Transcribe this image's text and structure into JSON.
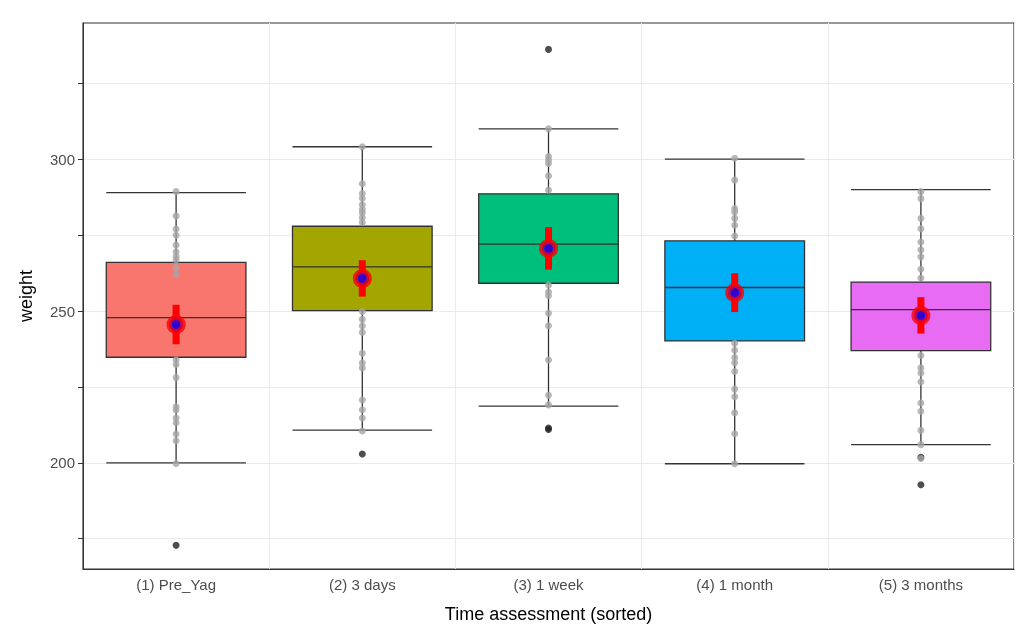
{
  "chart_data": {
    "type": "box",
    "xlabel": "Time assessment (sorted)",
    "ylabel": "weight",
    "categories": [
      "(1) Pre_Yag",
      "(2) 3 days",
      "(3) 1 week",
      "(4) 1 month",
      "(5) 3 months"
    ],
    "colors": [
      "#f8766d",
      "#a3a500",
      "#00bf7d",
      "#00b0f6",
      "#e76bf3"
    ],
    "boxes": [
      {
        "low": 200,
        "q1": 234.8,
        "median": 247.9,
        "q3": 266.1,
        "high": 289.1,
        "outliers": [
          172.8
        ]
      },
      {
        "low": 210.8,
        "q1": 250.2,
        "median": 264.6,
        "q3": 278,
        "high": 304.2,
        "outliers": [
          202.9
        ]
      },
      {
        "low": 218.7,
        "q1": 259.2,
        "median": 272.1,
        "q3": 288.7,
        "high": 310.1,
        "outliers": [
          211.5,
          211,
          336.3
        ]
      },
      {
        "low": 199.7,
        "q1": 240.2,
        "median": 257.8,
        "q3": 273.2,
        "high": 300.1
      },
      {
        "low": 206,
        "q1": 237,
        "median": 250.5,
        "q3": 259.6,
        "high": 290.1,
        "outliers": [
          201.8,
          192.8
        ]
      }
    ],
    "series": [
      {
        "type": "scatter",
        "color": "#a6a6a6",
        "x": [
          "(1) Pre_Yag",
          "(1) Pre_Yag",
          "(1) Pre_Yag",
          "(1) Pre_Yag",
          "(1) Pre_Yag",
          "(1) Pre_Yag",
          "(1) Pre_Yag",
          "(1) Pre_Yag",
          "(1) Pre_Yag",
          "(1) Pre_Yag",
          "(1) Pre_Yag",
          "(1) Pre_Yag",
          "(1) Pre_Yag",
          "(1) Pre_Yag",
          "(1) Pre_Yag",
          "(1) Pre_Yag",
          "(1) Pre_Yag",
          "(1) Pre_Yag",
          "(1) Pre_Yag",
          "(1) Pre_Yag",
          "(2) 3 days",
          "(2) 3 days",
          "(2) 3 days",
          "(2) 3 days",
          "(2) 3 days",
          "(2) 3 days",
          "(2) 3 days",
          "(2) 3 days",
          "(2) 3 days",
          "(2) 3 days",
          "(2) 3 days",
          "(2) 3 days",
          "(2) 3 days",
          "(2) 3 days",
          "(2) 3 days",
          "(2) 3 days",
          "(2) 3 days",
          "(2) 3 days",
          "(2) 3 days",
          "(2) 3 days",
          "(3) 1 week",
          "(3) 1 week",
          "(3) 1 week",
          "(3) 1 week",
          "(3) 1 week",
          "(3) 1 week",
          "(3) 1 week",
          "(3) 1 week",
          "(3) 1 week",
          "(3) 1 week",
          "(3) 1 week",
          "(3) 1 week",
          "(3) 1 week",
          "(3) 1 week",
          "(4) 1 month",
          "(4) 1 month",
          "(4) 1 month",
          "(4) 1 month",
          "(4) 1 month",
          "(4) 1 month",
          "(4) 1 month",
          "(4) 1 month",
          "(4) 1 month",
          "(4) 1 month",
          "(4) 1 month",
          "(4) 1 month",
          "(4) 1 month",
          "(4) 1 month",
          "(4) 1 month",
          "(4) 1 month",
          "(4) 1 month",
          "(5) 3 months",
          "(5) 3 months",
          "(5) 3 months",
          "(5) 3 months",
          "(5) 3 months",
          "(5) 3 months",
          "(5) 3 months",
          "(5) 3 months",
          "(5) 3 months",
          "(5) 3 months",
          "(5) 3 months",
          "(5) 3 months",
          "(5) 3 months",
          "(5) 3 months",
          "(5) 3 months",
          "(5) 3 months",
          "(5) 3 months",
          "(5) 3 months"
        ],
        "values": [
          289.4,
          281.4,
          277.1,
          275,
          271.8,
          269.6,
          268,
          266.9,
          264.4,
          262.2,
          234,
          232.4,
          228.1,
          218.5,
          217.4,
          214.8,
          213.2,
          209.5,
          207.3,
          199.8,
          304.2,
          292,
          288.8,
          287.2,
          285.1,
          283.5,
          282.4,
          280.8,
          279.2,
          249.9,
          247.3,
          245.1,
          243,
          236.1,
          232.9,
          231.3,
          220.7,
          217.5,
          214.8,
          210.5,
          310.1,
          301,
          299.8,
          298.7,
          294.6,
          289.9,
          258.6,
          256.3,
          255.1,
          249.3,
          245.2,
          233.9,
          222.3,
          219.1,
          300.4,
          293.2,
          283.8,
          282.7,
          280.6,
          278.3,
          274.8,
          239.4,
          237.1,
          234.7,
          233,
          230.1,
          224.3,
          221.8,
          216.5,
          209.6,
          199.7,
          289.4,
          287.1,
          280.6,
          277.2,
          272.8,
          270.2,
          267.9,
          263.8,
          260.9,
          235.4,
          231.3,
          229.6,
          226.7,
          219.7,
          217,
          210.7,
          206,
          201.4
        ]
      },
      {
        "type": "scatter",
        "color": "#ff0000",
        "x": [
          "(1) Pre_Yag",
          "(2) 3 days",
          "(3) 1 week",
          "(4) 1 month",
          "(5) 3 months"
        ],
        "values": [
          245.6,
          260.8,
          270.7,
          256.1,
          248.6
        ],
        "errors": [
          6.5,
          6,
          7,
          6.4,
          6
        ]
      }
    ],
    "ylim": [
      165,
      345
    ],
    "yticks": [
      {
        "value": 175,
        "label": null
      },
      200,
      {
        "value": 225,
        "label": null
      },
      250,
      {
        "value": 275,
        "label": null
      },
      300,
      {
        "value": 325,
        "label": null
      }
    ],
    "grid": true
  }
}
